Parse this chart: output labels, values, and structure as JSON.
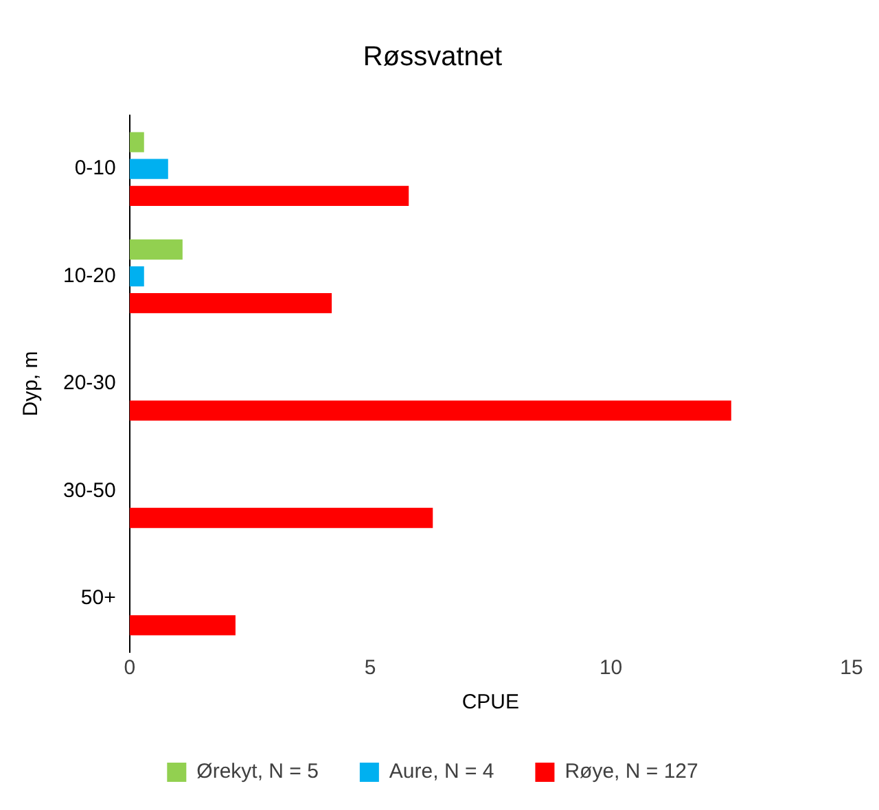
{
  "chart_data": {
    "type": "bar",
    "orientation": "horizontal",
    "title": "Røssvatnet",
    "xlabel": "CPUE",
    "ylabel": "Dyp, m",
    "categories": [
      "0-10",
      "10-20",
      "20-30",
      "30-50",
      "50+"
    ],
    "series": [
      {
        "name": "Ørekyt, N = 5",
        "color": "#92d050",
        "values": [
          0.3,
          1.1,
          0,
          0,
          0
        ]
      },
      {
        "name": "Aure, N = 4",
        "color": "#00b0f0",
        "values": [
          0.8,
          0.3,
          0,
          0,
          0
        ]
      },
      {
        "name": "Røye, N = 127",
        "color": "#ff0000",
        "values": [
          5.8,
          4.2,
          12.5,
          6.3,
          2.2
        ]
      }
    ],
    "xlim": [
      0,
      15
    ],
    "xticks": [
      0,
      5,
      10,
      15
    ],
    "grid": false,
    "legend": "bottom"
  }
}
